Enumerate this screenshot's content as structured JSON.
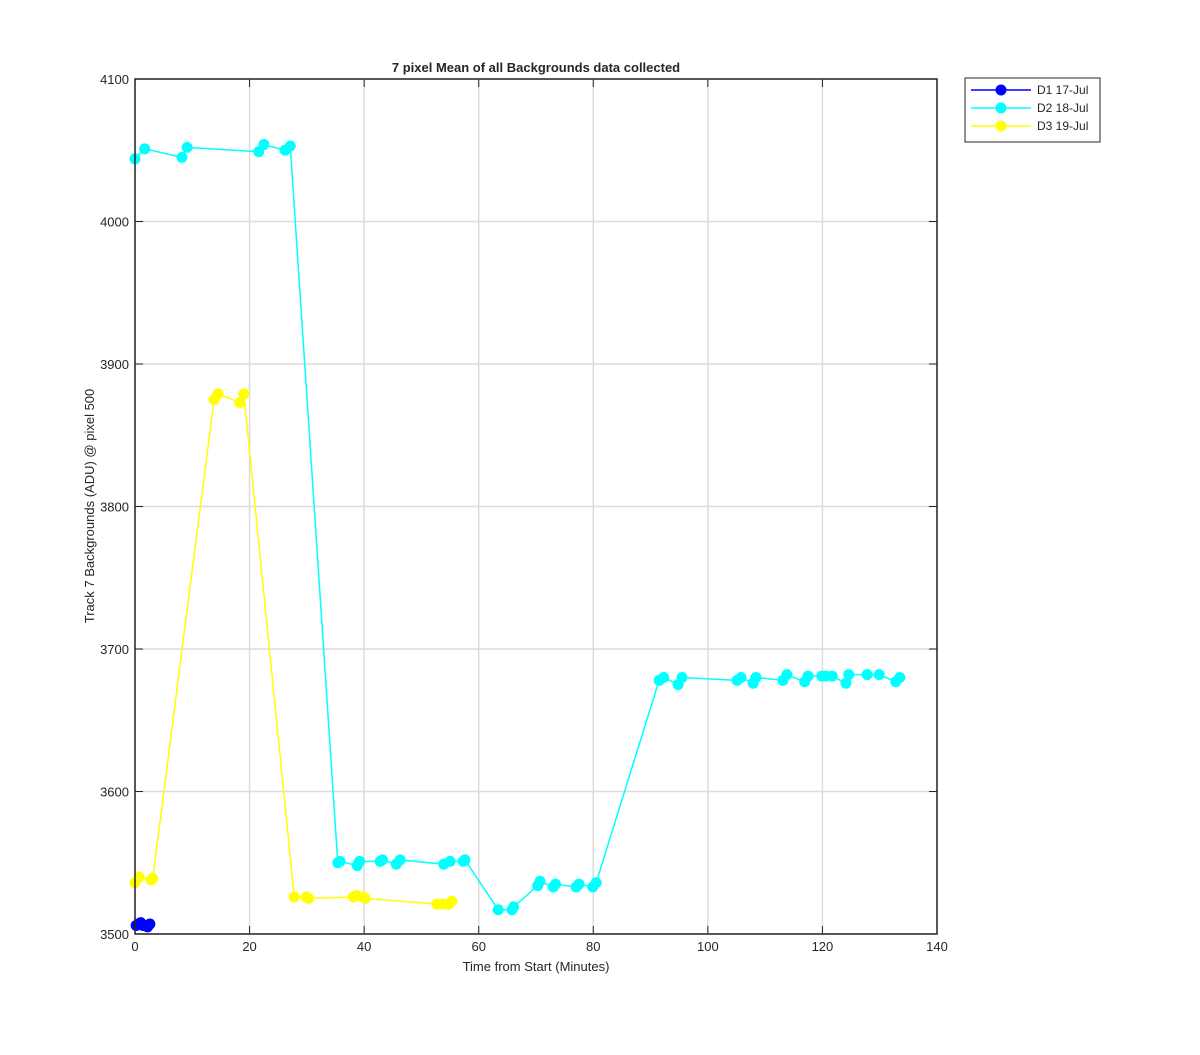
{
  "chart_data": {
    "type": "line",
    "title": "7 pixel Mean of all Backgrounds data collected",
    "x_label": "Time from Start (Minutes)",
    "y_label": "Track 7 Backgrounds (ADU) @ pixel 500",
    "xlim": [
      0,
      140
    ],
    "xticks": [
      0,
      20,
      40,
      60,
      80,
      100,
      120,
      140
    ],
    "ylim": [
      3500,
      4100
    ],
    "yticks": [
      3500,
      3600,
      3700,
      3800,
      3900,
      4000,
      4100
    ],
    "grid": true,
    "legend": "outside-top-right",
    "series": [
      {
        "name": "D1 17-Jul",
        "color": "#0000ff",
        "x": [
          0.2,
          0.6,
          1.0,
          1.4,
          2.2,
          2.6
        ],
        "values": [
          3506,
          3507,
          3508,
          3506,
          3505,
          3507
        ]
      },
      {
        "name": "D2 18-Jul",
        "color": "#00ffff",
        "x": [
          0.0,
          1.7,
          8.2,
          9.1,
          21.6,
          22.5,
          26.2,
          27.1,
          35.4,
          35.8,
          38.8,
          39.2,
          42.8,
          43.2,
          45.6,
          46.3,
          53.9,
          55.0,
          57.3,
          57.6,
          63.4,
          65.8,
          66.1,
          70.3,
          70.7,
          73.0,
          73.4,
          77.0,
          77.5,
          79.9,
          80.5,
          91.5,
          92.3,
          94.8,
          95.5,
          105.1,
          105.8,
          107.9,
          108.4,
          113.1,
          113.8,
          116.9,
          117.5,
          119.9,
          120.6,
          121.7,
          124.1,
          124.6,
          127.8,
          129.9,
          132.8,
          133.5
        ],
        "values": [
          4044,
          4051,
          4045,
          4052,
          4049,
          4054,
          4050,
          4053,
          3550,
          3551,
          3548,
          3551,
          3551,
          3552,
          3549,
          3552,
          3549,
          3551,
          3551,
          3552,
          3517,
          3517,
          3519,
          3534,
          3537,
          3533,
          3535,
          3533,
          3535,
          3533,
          3536,
          3678,
          3680,
          3675,
          3680,
          3678,
          3680,
          3676,
          3680,
          3678,
          3682,
          3677,
          3681,
          3681,
          3681,
          3681,
          3676,
          3682,
          3682,
          3682,
          3677,
          3680
        ]
      },
      {
        "name": "D3 19-Jul",
        "color": "#ffff00",
        "x": [
          0.0,
          0.7,
          2.8,
          3.1,
          13.8,
          14.5,
          18.3,
          19.0,
          27.8,
          29.9,
          30.3,
          38.1,
          38.7,
          39.8,
          40.2,
          52.7,
          53.8,
          54.8,
          55.3
        ],
        "values": [
          3536,
          3540,
          3538,
          3539,
          3875,
          3879,
          3873,
          3879,
          3526,
          3526,
          3525,
          3526,
          3527,
          3526,
          3525,
          3521,
          3521,
          3521,
          3523
        ]
      }
    ]
  }
}
